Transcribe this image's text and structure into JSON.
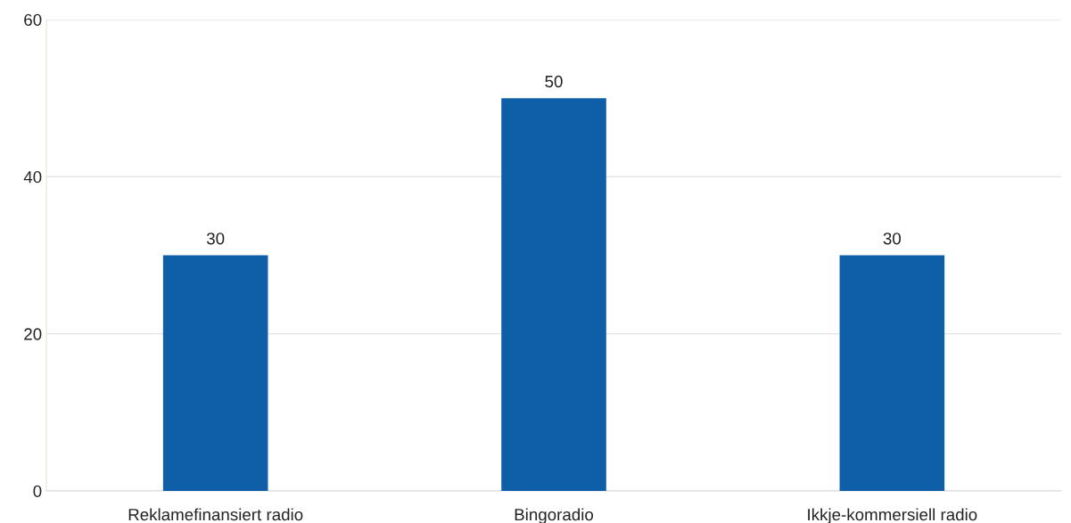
{
  "chart_data": {
    "type": "bar",
    "categories": [
      "Reklamefinansiert radio",
      "Bingoradio",
      "Ikkje-kommersiell radio"
    ],
    "values": [
      30,
      50,
      30
    ],
    "color": "#0e5ea8",
    "ylim": [
      0,
      60
    ],
    "yticks": [
      0,
      20,
      40,
      60
    ],
    "grid": "y",
    "data_labels": true
  }
}
